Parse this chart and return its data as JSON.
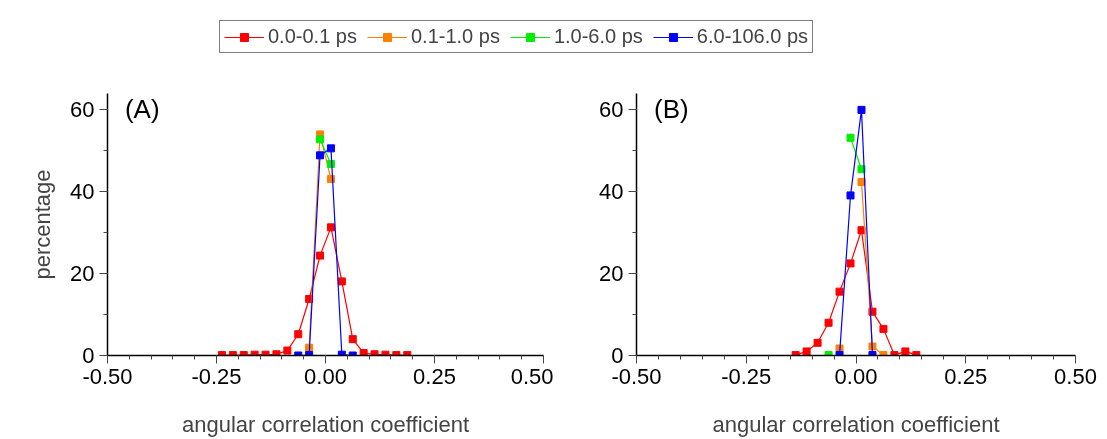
{
  "chart_data": [
    {
      "type": "line",
      "title": "(A)",
      "xlabel": "angular correlation coefficient",
      "ylabel": "percentage",
      "xlim": [
        -0.5,
        0.5
      ],
      "xticks": [
        {
          "value": -0.5,
          "label": "-0.50"
        },
        {
          "value": -0.25,
          "label": "-0.25"
        },
        {
          "value": 0,
          "label": "0.00"
        },
        {
          "value": 0.25,
          "label": "0.25"
        },
        {
          "value": 0.5,
          "label": "0.50"
        }
      ],
      "ylim": [
        0,
        64
      ],
      "yticks": [
        0,
        20,
        40,
        60
      ],
      "marker": "square",
      "legend": "top",
      "grid": false,
      "series": [
        {
          "name": "0.0-0.1 ps",
          "color": "#ff0000",
          "x": [
            -0.2375,
            -0.2125,
            -0.1875,
            -0.1625,
            -0.1375,
            -0.1125,
            -0.0875,
            -0.0625,
            -0.0375,
            -0.0125,
            0.0125,
            0.0375,
            0.0625,
            0.0875,
            0.1125,
            0.1375,
            0.1625,
            0.1875
          ],
          "values": [
            0.1,
            0.1,
            0.1,
            0.2,
            0.2,
            0.3,
            1.2,
            5.2,
            13.8,
            24.4,
            31.3,
            18.1,
            4.0,
            0.6,
            0.3,
            0.2,
            0.1,
            0.1
          ]
        },
        {
          "name": "0.1-1.0 ps",
          "color": "#ff8000",
          "x": [
            -0.0375,
            -0.0125,
            0.0125
          ],
          "values": [
            1.9,
            54.0,
            43.1
          ]
        },
        {
          "name": "1.0-6.0 ps",
          "color": "#00ee00",
          "x": [
            -0.0125,
            0.0125
          ],
          "values": [
            52.8,
            46.8
          ]
        },
        {
          "name": "6.0-106.0 ps",
          "color": "#0000ff",
          "x": [
            -0.0625,
            -0.0375,
            -0.0125,
            0.0125,
            0.0375,
            0.0625
          ],
          "values": [
            0.0,
            0.1,
            48.9,
            50.6,
            0.2,
            0.0
          ]
        }
      ]
    },
    {
      "type": "line",
      "title": "(B)",
      "xlabel": "angular correlation coefficient",
      "xlim": [
        -0.5,
        0.5
      ],
      "xticks": [
        {
          "value": -0.5,
          "label": "-0.50"
        },
        {
          "value": -0.25,
          "label": "-0.25"
        },
        {
          "value": 0,
          "label": "0.00"
        },
        {
          "value": 0.25,
          "label": "0.25"
        },
        {
          "value": 0.5,
          "label": "0.50"
        }
      ],
      "ylim": [
        0,
        64
      ],
      "yticks": [
        0,
        20,
        40,
        60
      ],
      "marker": "square",
      "grid": false,
      "series": [
        {
          "color": "#ff0000",
          "x": [
            -0.1375,
            -0.1125,
            -0.0875,
            -0.0625,
            -0.0375,
            -0.0125,
            0.0125,
            0.0375,
            0.0625,
            0.0875,
            0.1125,
            0.1375
          ],
          "values": [
            0.1,
            1.0,
            3.1,
            8.0,
            15.6,
            22.5,
            30.6,
            10.7,
            6.5,
            0.1,
            1.0,
            0.1
          ]
        },
        {
          "color": "#ff8000",
          "x": [
            -0.0375,
            -0.0125,
            0.0125,
            0.0375,
            0.0625
          ],
          "values": [
            1.7,
            null,
            42.4,
            2.2,
            0.1
          ]
        },
        {
          "color": "#00ee00",
          "x": [
            -0.0625,
            -0.0375,
            -0.0125,
            0.0125
          ],
          "values": [
            0.1,
            null,
            53.2,
            45.5
          ]
        },
        {
          "color": "#0000ff",
          "x": [
            -0.0375,
            -0.0125,
            0.0125,
            0.0375
          ],
          "values": [
            0.1,
            39.1,
            60.0,
            0.1
          ]
        }
      ]
    }
  ]
}
